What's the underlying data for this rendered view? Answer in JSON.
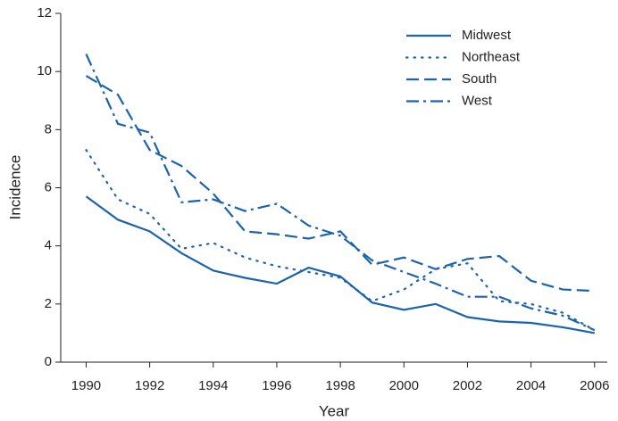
{
  "chart_data": {
    "type": "line",
    "x_label": "Year",
    "y_label": "Incidence",
    "x": [
      1990,
      1991,
      1992,
      1993,
      1994,
      1995,
      1996,
      1997,
      1998,
      1999,
      2000,
      2001,
      2002,
      2003,
      2004,
      2005,
      2006
    ],
    "series": [
      {
        "name": "Midwest",
        "color": "#1b64ad",
        "dash": "solid",
        "values": [
          5.7,
          4.9,
          4.5,
          3.75,
          3.15,
          2.9,
          2.7,
          3.25,
          2.95,
          2.05,
          1.8,
          2.0,
          1.55,
          1.4,
          1.35,
          1.2,
          1.0
        ]
      },
      {
        "name": "Northeast",
        "color": "#1b64ad",
        "dash": "dotted",
        "values": [
          7.3,
          5.6,
          5.1,
          3.9,
          4.1,
          3.6,
          3.3,
          3.1,
          2.9,
          2.1,
          2.5,
          3.2,
          3.4,
          2.1,
          2.0,
          1.7,
          1.1
        ]
      },
      {
        "name": "South",
        "color": "#1b64ad",
        "dash": "dashed",
        "values": [
          9.85,
          9.2,
          7.3,
          6.75,
          5.8,
          4.5,
          4.4,
          4.25,
          4.5,
          3.35,
          3.6,
          3.2,
          3.55,
          3.65,
          2.8,
          2.5,
          2.45
        ]
      },
      {
        "name": "West",
        "color": "#1b64ad",
        "dash": "dashdot",
        "values": [
          10.6,
          8.2,
          7.9,
          5.5,
          5.6,
          5.2,
          5.45,
          4.7,
          4.35,
          3.5,
          3.1,
          2.7,
          2.25,
          2.25,
          1.85,
          1.6,
          1.1
        ]
      }
    ],
    "xlim": [
      1989.2,
      2006.4
    ],
    "xticks": [
      1990,
      1992,
      1994,
      1996,
      1998,
      2000,
      2002,
      2004,
      2006
    ],
    "ylim": [
      0,
      12
    ],
    "yticks": [
      0,
      2,
      4,
      6,
      8,
      10,
      12
    ],
    "grid": false,
    "legend": "top-right"
  }
}
